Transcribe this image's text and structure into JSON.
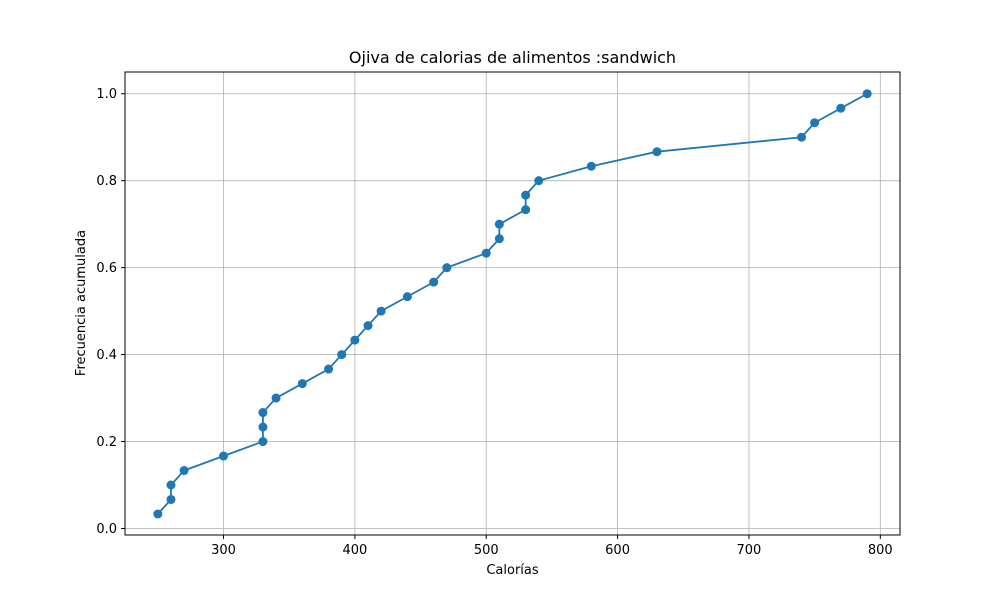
{
  "chart_data": {
    "type": "line",
    "title": "Ojiva de calorias de alimentos :sandwich",
    "xlabel": "Calorías",
    "ylabel": "Frecuencia acumulada",
    "xlim": [
      225,
      815
    ],
    "ylim": [
      -0.015,
      1.05
    ],
    "x_ticks": [
      300,
      400,
      500,
      600,
      700,
      800
    ],
    "y_ticks": [
      0.0,
      0.2,
      0.4,
      0.6,
      0.8,
      1.0
    ],
    "x_tick_labels": [
      "300",
      "400",
      "500",
      "600",
      "700",
      "800"
    ],
    "y_tick_labels": [
      "0.0",
      "0.2",
      "0.4",
      "0.6",
      "0.8",
      "1.0"
    ],
    "grid": true,
    "color": "#1f77b4",
    "marker": "circle",
    "x": [
      250,
      260,
      260,
      270,
      300,
      330,
      330,
      330,
      340,
      360,
      380,
      390,
      400,
      410,
      420,
      440,
      460,
      470,
      500,
      510,
      510,
      530,
      530,
      540,
      580,
      630,
      740,
      750,
      770,
      790
    ],
    "y": [
      0.0333,
      0.0667,
      0.1,
      0.1333,
      0.1667,
      0.2,
      0.2333,
      0.2667,
      0.3,
      0.3333,
      0.3667,
      0.4,
      0.4333,
      0.4667,
      0.5,
      0.5333,
      0.5667,
      0.6,
      0.6333,
      0.6667,
      0.7,
      0.7333,
      0.7667,
      0.8,
      0.8333,
      0.8667,
      0.9,
      0.9333,
      0.9667,
      1.0
    ]
  }
}
